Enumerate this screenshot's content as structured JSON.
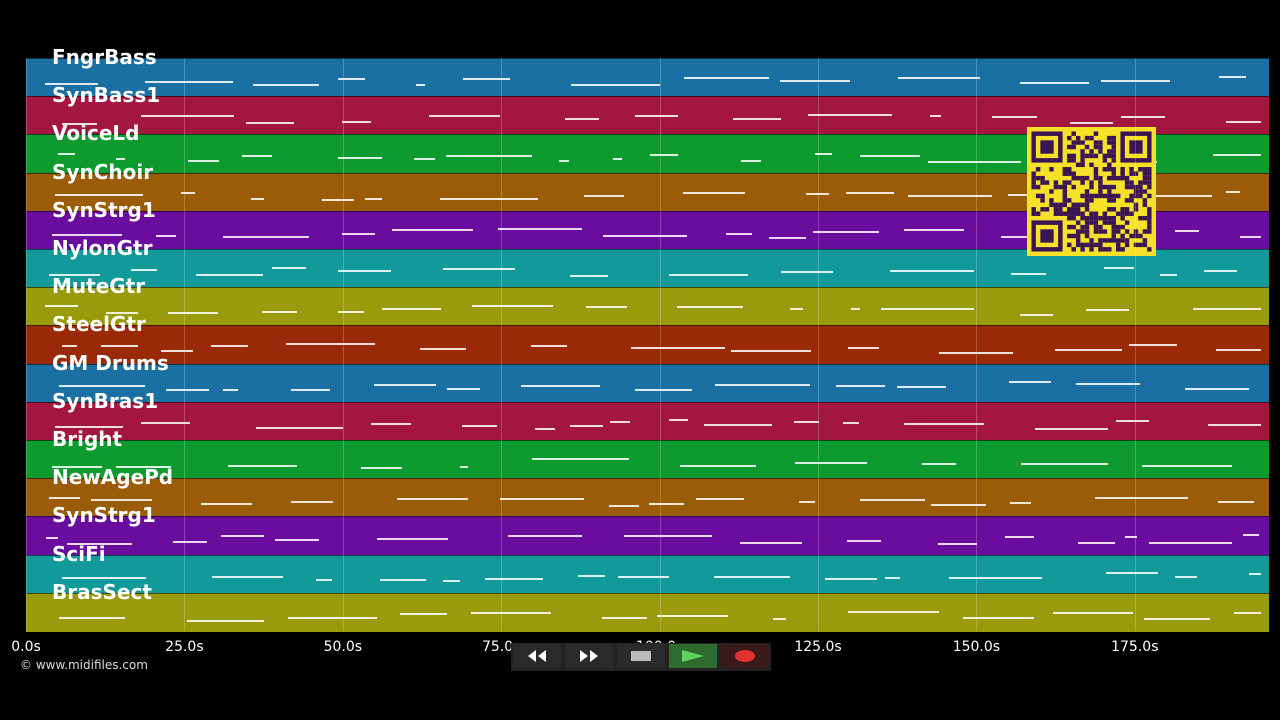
{
  "tracks": [
    {
      "name": "FngrBass",
      "color": "#1a6fa3"
    },
    {
      "name": "SynBass1",
      "color": "#a3163f"
    },
    {
      "name": "VoiceLd",
      "color": "#0d9a2e"
    },
    {
      "name": "SynChoir",
      "color": "#9a5c07"
    },
    {
      "name": "SynStrg1",
      "color": "#6a0d9e"
    },
    {
      "name": "NylonGtr",
      "color": "#12999a"
    },
    {
      "name": "MuteGtr",
      "color": "#9a9a0d"
    },
    {
      "name": "SteelGtr",
      "color": "#9a2a07"
    },
    {
      "name": "GM Drums",
      "color": "#1a6fa3"
    },
    {
      "name": "SynBras1",
      "color": "#a3163f"
    },
    {
      "name": "Bright",
      "color": "#0d9a2e"
    },
    {
      "name": "NewAgePd",
      "color": "#9a5c07"
    },
    {
      "name": "SynStrg1",
      "color": "#6a0d9e"
    },
    {
      "name": "SciFi",
      "color": "#12999a"
    },
    {
      "name": "BrasSect",
      "color": "#9a9a0d"
    }
  ],
  "time_axis": {
    "ticks": [
      "0.0s",
      "25.0s",
      "50.0s",
      "75.0s",
      "100.0s",
      "125.0s",
      "150.0s",
      "175.0s"
    ]
  },
  "credit": "© www.midifiles.com",
  "transport": {
    "rewind_icon": "rewind-icon",
    "forward_icon": "fast-forward-icon",
    "stop_icon": "stop-icon",
    "play_icon": "play-icon",
    "record_icon": "record-icon"
  },
  "qr_color": "#f5e12a"
}
